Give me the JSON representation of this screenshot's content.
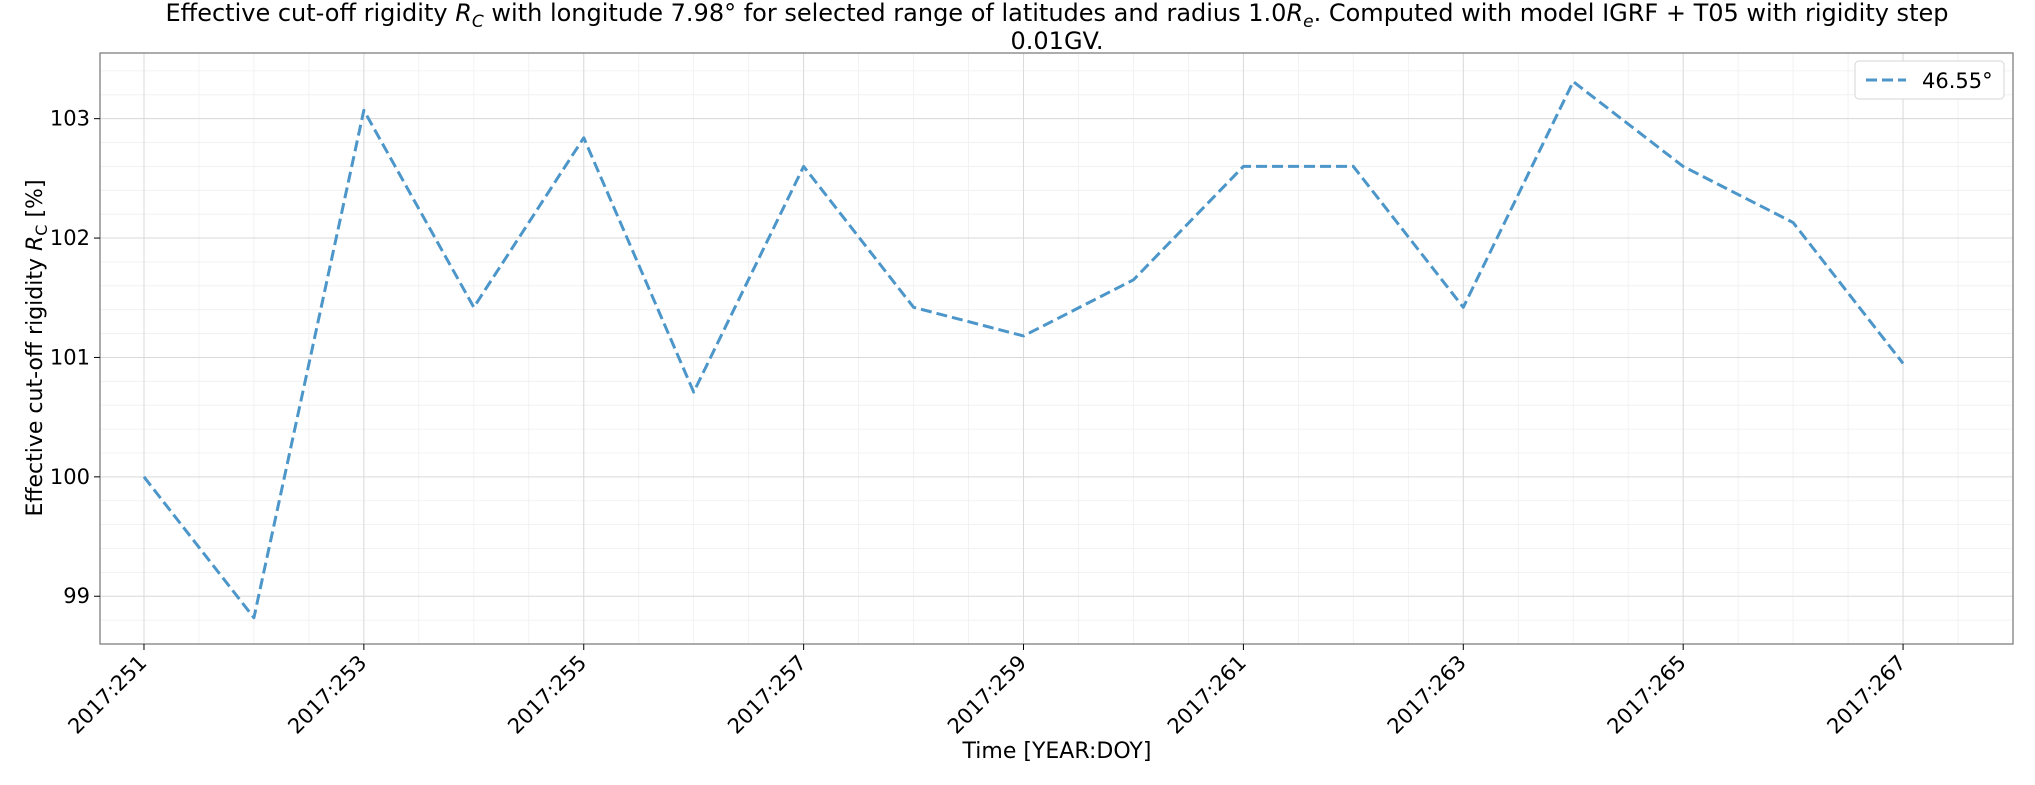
{
  "chart_data": {
    "type": "line",
    "title": {
      "line1_prefix": "Effective cut-off rigidity ",
      "line1_sym": "R",
      "line1_sub": "C",
      "line1_middle": " with longitude 7.98° for selected range of latitudes and radius 1.0",
      "line1_sym2": "R",
      "line1_sub2": "e",
      "line1_suffix": ". Computed with model IGRF + T05 with rigidity step",
      "line2": "0.01GV."
    },
    "xlabel": "Time [YEAR:DOY]",
    "ylabel": {
      "prefix": "Effective cut-off rigidity ",
      "sym": "R",
      "sub": "C",
      "suffix": " [%]"
    },
    "x_ticks": [
      "2017:251",
      "2017:253",
      "2017:255",
      "2017:257",
      "2017:259",
      "2017:261",
      "2017:263",
      "2017:265",
      "2017:267"
    ],
    "y_ticks": [
      "99",
      "100",
      "101",
      "102",
      "103"
    ],
    "xlim": [
      2017.2506,
      2017.268
    ],
    "ylim": [
      98.6,
      103.55
    ],
    "grid": true,
    "minor_grid": true,
    "legend_position": "upper right",
    "series": [
      {
        "name": "46.55°",
        "color": "#4c96c9",
        "style": "dashed",
        "x": [
          "2017:251",
          "2017:252",
          "2017:253",
          "2017:254",
          "2017:255",
          "2017:256",
          "2017:257",
          "2017:258",
          "2017:259",
          "2017:260",
          "2017:261",
          "2017:262",
          "2017:263",
          "2017:264",
          "2017:265",
          "2017:266",
          "2017:267"
        ],
        "values": [
          100.0,
          98.82,
          103.07,
          101.42,
          102.84,
          100.71,
          102.6,
          101.42,
          101.18,
          101.65,
          102.6,
          102.6,
          101.42,
          103.31,
          102.6,
          102.13,
          100.95
        ]
      }
    ]
  }
}
